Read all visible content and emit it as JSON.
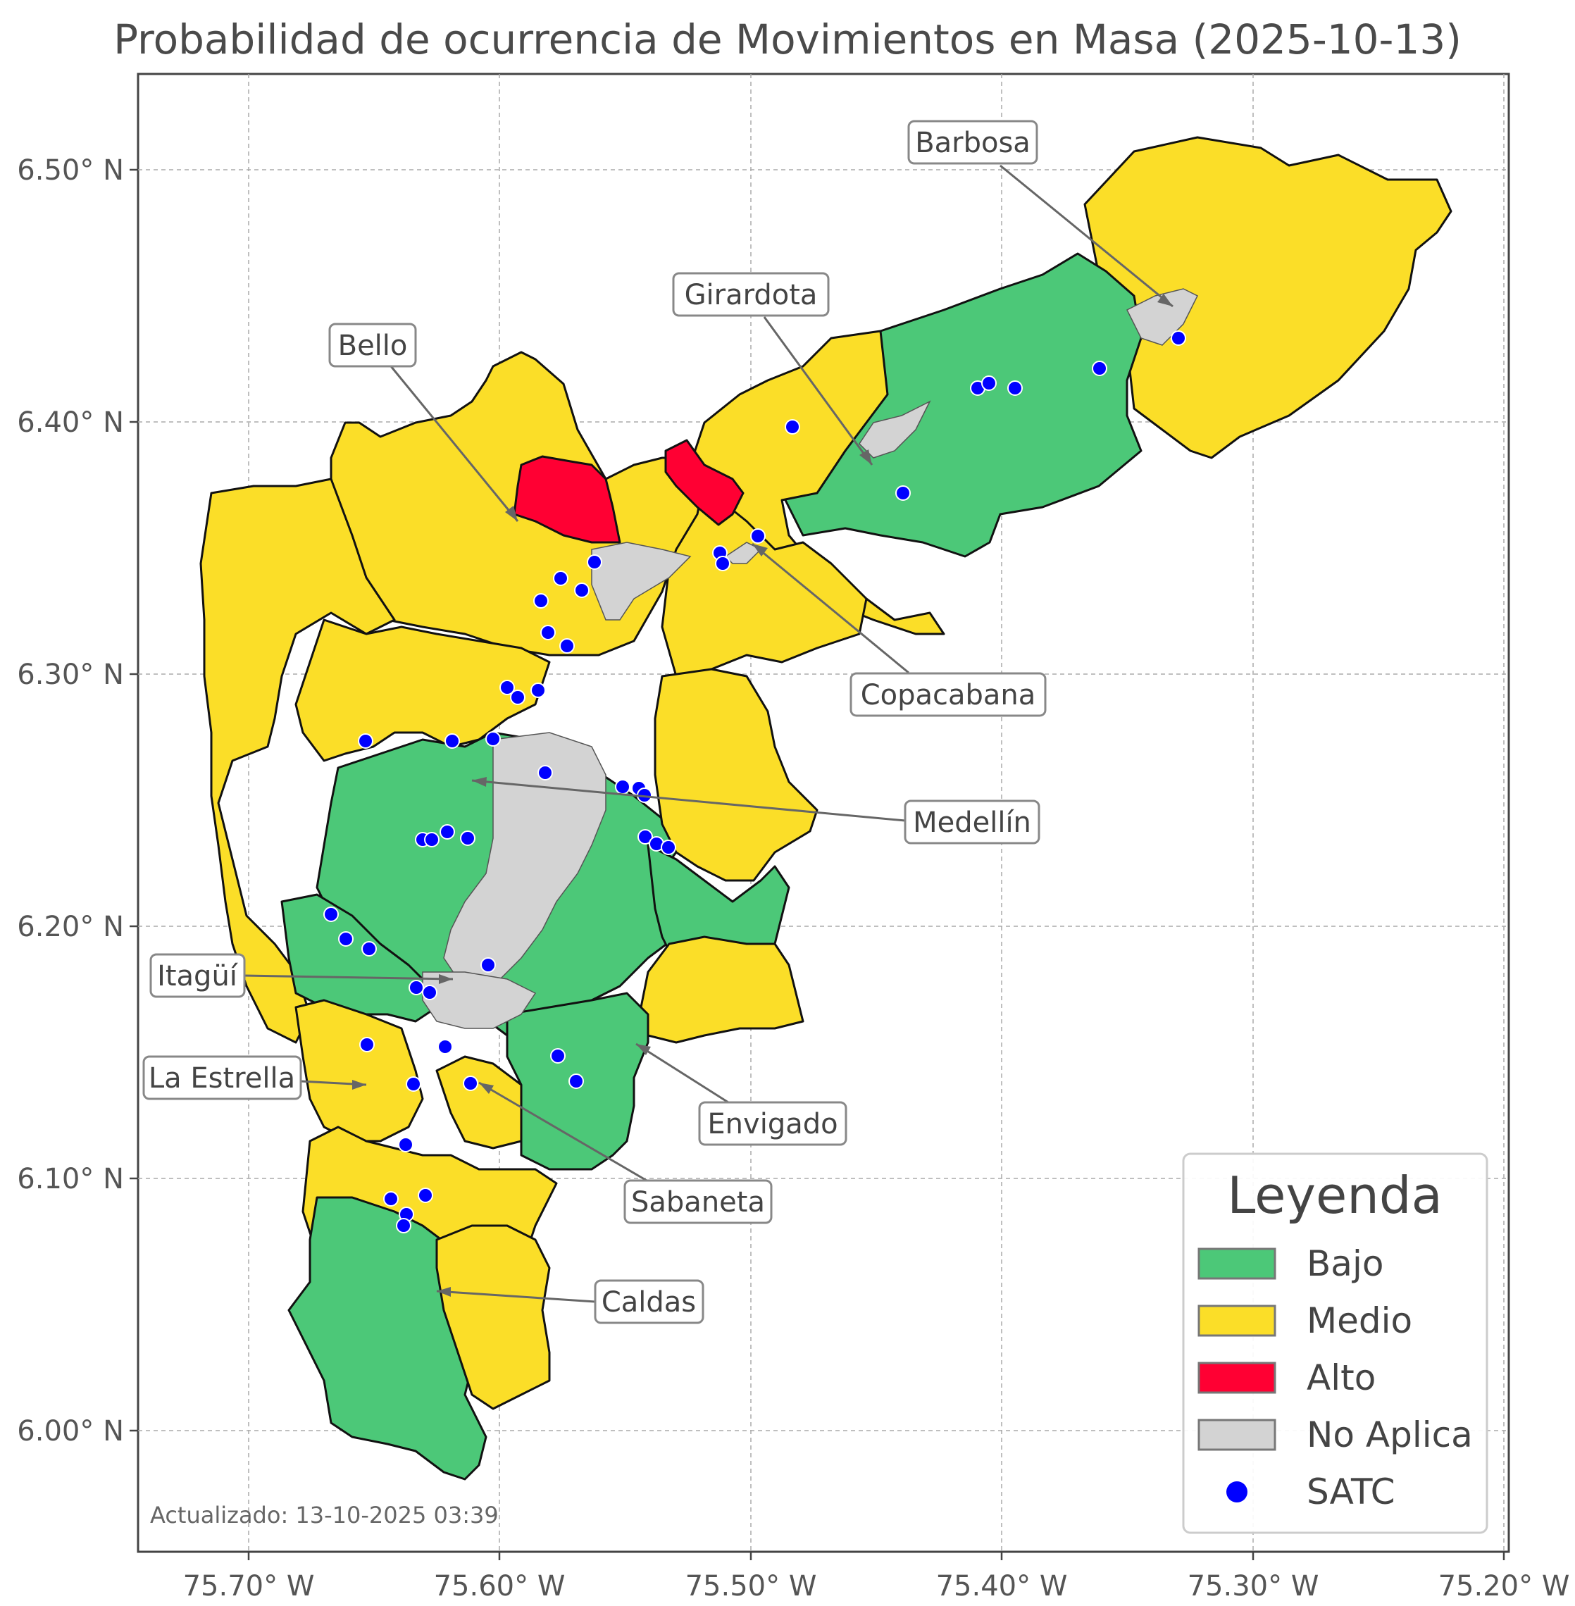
{
  "title": "Probabilidad de ocurrencia de Movimientos en Masa (2025-10-13)",
  "axes": {
    "x_ticks": [
      "75.70° W",
      "75.60° W",
      "75.50° W",
      "75.40° W",
      "75.30° W",
      "75.20° W"
    ],
    "y_ticks": [
      "6.50° N",
      "6.40° N",
      "6.30° N",
      "6.20° N",
      "6.10° N",
      "6.00° N"
    ],
    "grid": true
  },
  "legend": {
    "title": "Leyenda",
    "items": [
      {
        "label": "Bajo",
        "color": "#4cc878",
        "kind": "patch"
      },
      {
        "label": "Medio",
        "color": "#fbde28",
        "kind": "patch"
      },
      {
        "label": "Alto",
        "color": "#ff0033",
        "kind": "patch"
      },
      {
        "label": "No Aplica",
        "color": "#d3d3d3",
        "kind": "patch"
      },
      {
        "label": "SATC",
        "color": "#0000ff",
        "kind": "marker"
      }
    ],
    "placement": "bottom-right"
  },
  "municipalities": [
    {
      "name": "Barbosa",
      "risk": "Medio"
    },
    {
      "name": "Girardota",
      "risk": "Bajo"
    },
    {
      "name": "Bello",
      "risk": "Alto"
    },
    {
      "name": "Copacabana",
      "risk": "Medio"
    },
    {
      "name": "Medellín",
      "risk": "Bajo"
    },
    {
      "name": "Itagüí",
      "risk": "Bajo"
    },
    {
      "name": "La Estrella",
      "risk": "Medio"
    },
    {
      "name": "Envigado",
      "risk": "Bajo"
    },
    {
      "name": "Sabaneta",
      "risk": "Medio"
    },
    {
      "name": "Caldas",
      "risk": "Bajo"
    }
  ],
  "footnote": "Actualizado: 13-10-2025 03:39",
  "colors": {
    "bajo": "#4cc878",
    "medio": "#fbde28",
    "alto": "#ff0033",
    "no_aplica": "#d3d3d3",
    "satc": "#0000ff"
  }
}
